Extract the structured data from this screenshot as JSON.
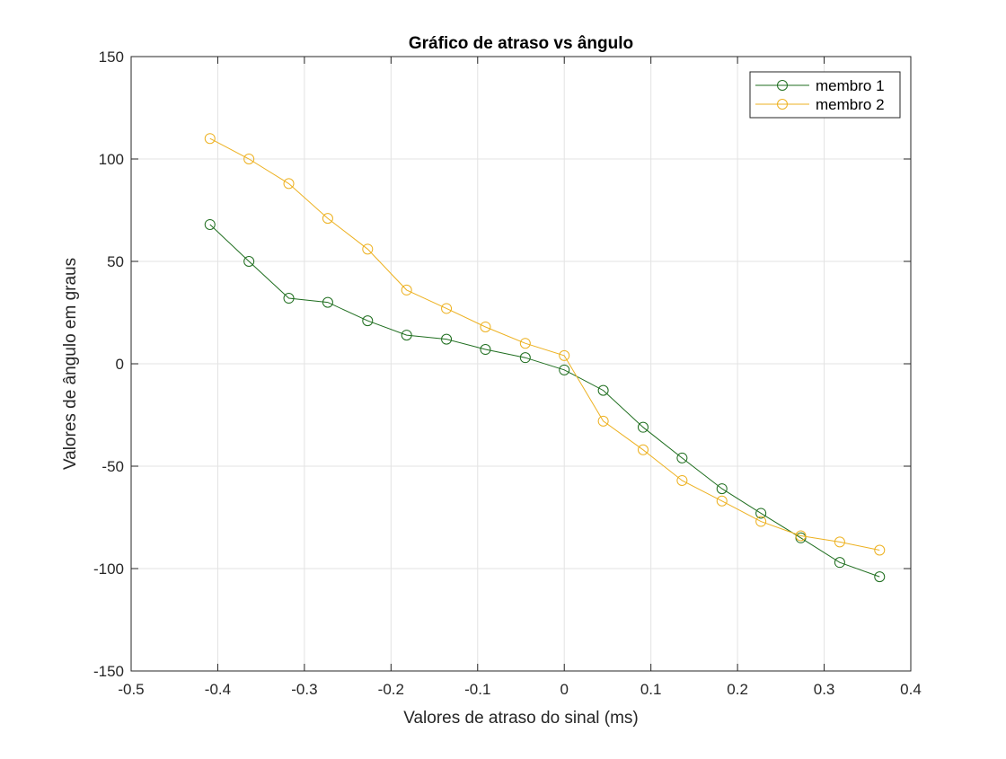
{
  "chart_data": {
    "type": "line",
    "title": "Gráfico de atraso vs ângulo",
    "xlabel": "Valores de atraso do sinal (ms)",
    "ylabel": "Valores de ângulo em graus",
    "xlim": [
      -0.5,
      0.4
    ],
    "ylim": [
      -150,
      150
    ],
    "xticks": [
      -0.5,
      -0.4,
      -0.3,
      -0.2,
      -0.1,
      0,
      0.1,
      0.2,
      0.3,
      0.4
    ],
    "xtick_labels": [
      "-0.5",
      "-0.4",
      "-0.3",
      "-0.2",
      "-0.1",
      "0",
      "0.1",
      "0.2",
      "0.3",
      "0.4"
    ],
    "yticks": [
      -150,
      -100,
      -50,
      0,
      50,
      100,
      150
    ],
    "ytick_labels": [
      "-150",
      "-100",
      "-50",
      "0",
      "50",
      "100",
      "150"
    ],
    "grid": true,
    "legend_position": "top-right",
    "x": [
      -0.409,
      -0.364,
      -0.318,
      -0.273,
      -0.227,
      -0.182,
      -0.136,
      -0.091,
      -0.045,
      0,
      0.045,
      0.091,
      0.136,
      0.182,
      0.227,
      0.273,
      0.318,
      0.364
    ],
    "series": [
      {
        "name": "membro 1",
        "color": "#1f6e1f",
        "marker": "circle",
        "values": [
          68,
          50,
          32,
          30,
          21,
          14,
          12,
          7,
          3,
          -3,
          -13,
          -31,
          -46,
          -61,
          -73,
          -85,
          -97,
          -104
        ]
      },
      {
        "name": "membro 2",
        "color": "#edb120",
        "marker": "circle",
        "values": [
          110,
          100,
          88,
          71,
          56,
          36,
          27,
          18,
          10,
          4,
          -28,
          -42,
          -57,
          -67,
          -77,
          -84,
          -87,
          -91
        ]
      }
    ]
  }
}
